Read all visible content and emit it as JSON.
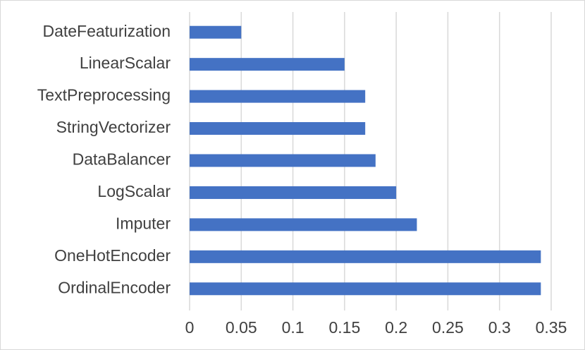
{
  "chart_data": {
    "type": "hbar",
    "categories": [
      "DateFeaturization",
      "LinearScalar",
      "TextPreprocessing",
      "StringVectorizer",
      "DataBalancer",
      "LogScalar",
      "Imputer",
      "OneHotEncoder",
      "OrdinalEncoder"
    ],
    "values": [
      0.05,
      0.15,
      0.17,
      0.17,
      0.18,
      0.2,
      0.22,
      0.34,
      0.34
    ],
    "color": "#4472c4",
    "xlim": [
      0,
      0.35
    ],
    "xticks": [
      0,
      0.05,
      0.1,
      0.15,
      0.2,
      0.25,
      0.3,
      0.35
    ],
    "grid": true
  }
}
